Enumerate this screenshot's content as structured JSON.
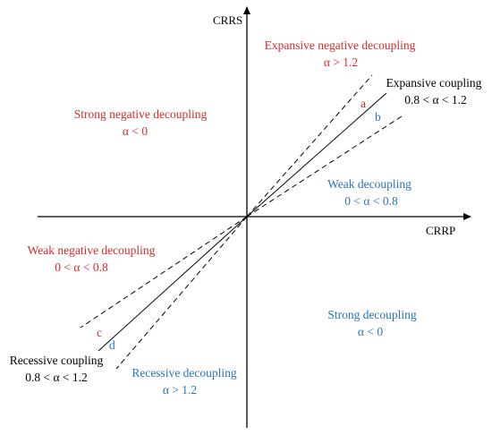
{
  "axes": {
    "x_label": "CRRP",
    "y_label": "CRRS"
  },
  "colors": {
    "red": "#d62b2b",
    "blue": "#2b74b8",
    "black": "#000000"
  },
  "regions": {
    "expansive_negative": {
      "name": "Expansive negative decoupling",
      "condition": "α > 1.2",
      "color": "red"
    },
    "expansive_coupling": {
      "name": "Expansive coupling",
      "condition": "0.8 < α < 1.2",
      "color": "black"
    },
    "strong_negative": {
      "name": "Strong negative decoupling",
      "condition": "α < 0",
      "color": "red"
    },
    "weak": {
      "name": "Weak decoupling",
      "condition": "0 < α < 0.8",
      "color": "blue"
    },
    "weak_negative": {
      "name": "Weak negative decoupling",
      "condition": "0 < α < 0.8",
      "color": "red"
    },
    "strong": {
      "name": "Strong decoupling",
      "condition": "α < 0",
      "color": "blue"
    },
    "recessive_coupling": {
      "name": "Recessive coupling",
      "condition": "0.8 < α < 1.2",
      "color": "black"
    },
    "recessive": {
      "name": "Recessive decoupling",
      "condition": "α > 1.2",
      "color": "blue"
    }
  },
  "line_labels": {
    "a": "a",
    "b": "b",
    "c": "c",
    "d": "d"
  }
}
